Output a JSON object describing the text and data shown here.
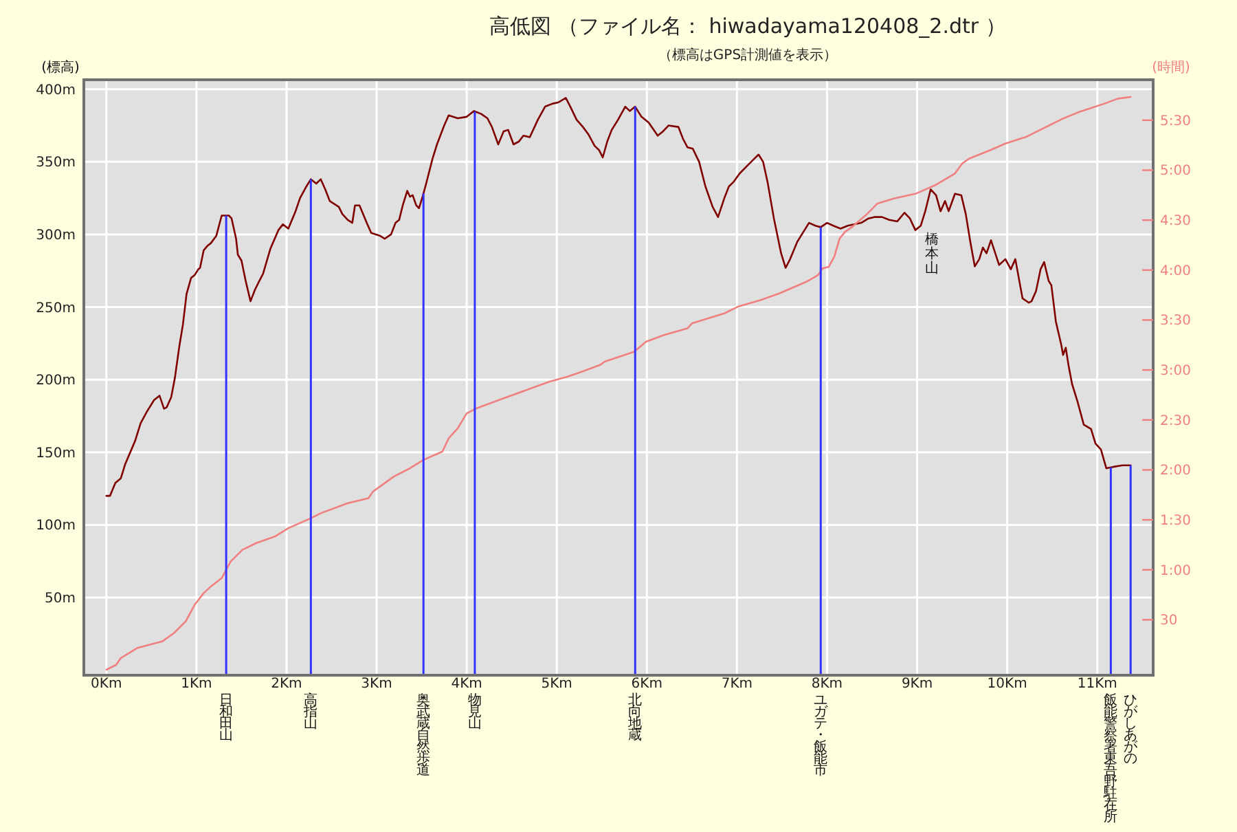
{
  "chart_data": {
    "type": "line",
    "title": "高低図 （ファイル名： hiwadayama120408_2.dtr ）",
    "subtitle": "（標高はGPS計測値を表示）",
    "ylabel": "(標高)",
    "y2label": "(時間)",
    "xlim": [
      -0.25,
      11.62
    ],
    "xticks": [
      {
        "value": 0,
        "label": "0Km"
      },
      {
        "value": 1,
        "label": "1Km"
      },
      {
        "value": 2,
        "label": "2Km"
      },
      {
        "value": 3,
        "label": "3Km"
      },
      {
        "value": 4,
        "label": "4Km"
      },
      {
        "value": 5,
        "label": "5Km"
      },
      {
        "value": 6,
        "label": "6Km"
      },
      {
        "value": 7,
        "label": "7Km"
      },
      {
        "value": 8,
        "label": "8Km"
      },
      {
        "value": 9,
        "label": "9Km"
      },
      {
        "value": 10,
        "label": "10Km"
      },
      {
        "value": 11,
        "label": "11Km"
      }
    ],
    "ylim": [
      -3.5,
      406.5
    ],
    "yticks": [
      {
        "value": 50,
        "label": "50m"
      },
      {
        "value": 100,
        "label": "100m"
      },
      {
        "value": 150,
        "label": "150m"
      },
      {
        "value": 200,
        "label": "200m"
      },
      {
        "value": 250,
        "label": "250m"
      },
      {
        "value": 300,
        "label": "300m"
      },
      {
        "value": 350,
        "label": "350m"
      },
      {
        "value": 400,
        "label": "400m"
      }
    ],
    "y2lim": [
      -3.3,
      354.3
    ],
    "y2ticks": [
      30,
      {
        "value": 60,
        "label": "1:00"
      },
      {
        "value": 90,
        "label": "1:30"
      },
      {
        "value": 120,
        "label": "2:00"
      },
      {
        "value": 150,
        "label": "2:30"
      },
      {
        "value": 180,
        "label": "3:00"
      },
      {
        "value": 210,
        "label": "3:30"
      },
      {
        "value": 240,
        "label": "4:00"
      },
      {
        "value": 270,
        "label": "4:30"
      },
      {
        "value": 300,
        "label": "5:00"
      },
      {
        "value": 330,
        "label": "5:30"
      }
    ],
    "grid": true,
    "series": [
      {
        "color": "#800000",
        "x": [
          0.0,
          0.04,
          0.1,
          0.16,
          0.21,
          0.32,
          0.38,
          0.45,
          0.53,
          0.59,
          0.64,
          0.67,
          0.72,
          0.76,
          0.81,
          0.85,
          0.89,
          0.94,
          0.98,
          1.02,
          1.04,
          1.08,
          1.12,
          1.16,
          1.22,
          1.28,
          1.36,
          1.39,
          1.44,
          1.46,
          1.5,
          1.55,
          1.6,
          1.65,
          1.69,
          1.74,
          1.82,
          1.91,
          1.96,
          2.02,
          2.1,
          2.15,
          2.22,
          2.27,
          2.33,
          2.38,
          2.43,
          2.48,
          2.58,
          2.62,
          2.68,
          2.73,
          2.76,
          2.81,
          2.89,
          2.94,
          3.04,
          3.09,
          3.16,
          3.21,
          3.25,
          3.29,
          3.34,
          3.37,
          3.4,
          3.44,
          3.47,
          3.51,
          3.55,
          3.62,
          3.67,
          3.75,
          3.8,
          3.9,
          4.0,
          4.08,
          4.16,
          4.23,
          4.28,
          4.35,
          4.41,
          4.46,
          4.52,
          4.58,
          4.63,
          4.7,
          4.79,
          4.87,
          4.95,
          5.02,
          5.1,
          5.15,
          5.22,
          5.29,
          5.35,
          5.42,
          5.47,
          5.51,
          5.56,
          5.61,
          5.68,
          5.76,
          5.81,
          5.87,
          5.94,
          6.02,
          6.12,
          6.18,
          6.24,
          6.35,
          6.4,
          6.45,
          6.51,
          6.58,
          6.65,
          6.73,
          6.79,
          6.86,
          6.91,
          6.96,
          7.03,
          7.11,
          7.19,
          7.24,
          7.29,
          7.34,
          7.41,
          7.49,
          7.54,
          7.59,
          7.67,
          7.75,
          7.8,
          7.87,
          7.93,
          8.0,
          8.07,
          8.15,
          8.23,
          8.38,
          8.46,
          8.53,
          8.61,
          8.69,
          8.78,
          8.86,
          8.92,
          8.98,
          9.04,
          9.09,
          9.15,
          9.21,
          9.26,
          9.31,
          9.35,
          9.42,
          9.49,
          9.54,
          9.59,
          9.64,
          9.69,
          9.73,
          9.77,
          9.82,
          9.91,
          9.98,
          10.04,
          10.09,
          10.17,
          10.24,
          10.27,
          10.32,
          10.37,
          10.41,
          10.46,
          10.49,
          10.54,
          10.6,
          10.62,
          10.65,
          10.68,
          10.72,
          10.78,
          10.85,
          10.93,
          10.98,
          11.04,
          11.1,
          11.18,
          11.28,
          11.37
        ],
        "values": [
          120,
          120,
          129,
          132,
          142,
          158,
          170,
          178,
          186,
          189,
          180,
          181,
          188,
          201,
          223,
          238,
          259,
          270,
          272,
          276,
          277,
          289,
          292,
          294,
          299,
          313,
          313,
          311,
          297,
          286,
          282,
          267,
          254,
          262,
          267,
          273,
          290,
          303,
          307,
          304,
          316,
          325,
          333,
          338,
          335,
          338,
          331,
          323,
          319,
          314,
          310,
          308,
          320,
          320,
          308,
          301,
          299,
          297,
          300,
          308,
          310,
          320,
          330,
          326,
          327,
          320,
          318,
          326,
          335,
          352,
          362,
          375,
          382,
          380,
          381,
          385,
          383,
          380,
          374,
          362,
          371,
          372,
          362,
          364,
          368,
          367,
          379,
          388,
          390,
          391,
          394,
          388,
          379,
          374,
          369,
          361,
          358,
          353,
          364,
          372,
          379,
          388,
          385,
          388,
          381,
          377,
          368,
          371,
          375,
          374,
          366,
          360,
          359,
          350,
          333,
          319,
          312,
          325,
          333,
          336,
          342,
          347,
          352,
          355,
          350,
          336,
          311,
          287,
          277,
          283,
          295,
          303,
          308,
          306,
          305,
          308,
          306,
          304,
          306,
          308,
          311,
          312,
          312,
          310,
          309,
          315,
          311,
          303,
          306,
          316,
          331,
          327,
          316,
          323,
          316,
          328,
          327,
          314,
          295,
          278,
          283,
          291,
          287,
          296,
          279,
          283,
          276,
          283,
          256,
          253,
          254,
          261,
          276,
          281,
          268,
          265,
          240,
          224,
          217,
          222,
          210,
          197,
          185,
          169,
          166,
          156,
          152,
          139,
          140,
          141,
          141
        ]
      },
      {
        "color": "#f08080",
        "axis": "y2",
        "x": [
          0.0,
          0.11,
          0.16,
          0.34,
          0.62,
          0.75,
          0.88,
          0.98,
          1.08,
          1.16,
          1.28,
          1.38,
          1.51,
          1.66,
          1.87,
          2.02,
          2.27,
          2.38,
          2.68,
          2.91,
          2.96,
          3.19,
          3.37,
          3.52,
          3.73,
          3.8,
          3.9,
          4.0,
          4.11,
          4.41,
          4.92,
          5.12,
          5.28,
          5.48,
          5.53,
          5.86,
          5.99,
          6.19,
          6.45,
          6.5,
          6.86,
          7.01,
          7.26,
          7.47,
          7.77,
          7.9,
          7.95,
          8.02,
          8.08,
          8.14,
          8.2,
          8.28,
          8.43,
          8.56,
          8.74,
          8.99,
          9.2,
          9.42,
          9.5,
          9.58,
          9.81,
          9.98,
          10.21,
          10.32,
          10.62,
          10.8,
          11.08,
          11.23,
          11.37
        ],
        "values": [
          0,
          3,
          7,
          13,
          17,
          22,
          29,
          39,
          46,
          50,
          55,
          65,
          72,
          76,
          80,
          85,
          91,
          94,
          100,
          103,
          107,
          116,
          121,
          126,
          131,
          139,
          145,
          154,
          157,
          163,
          173,
          176,
          179,
          183,
          185,
          191,
          197,
          201,
          205,
          208,
          214,
          218,
          222,
          226,
          233,
          237,
          241,
          242,
          248,
          259,
          263,
          266,
          273,
          280,
          283,
          286,
          291,
          298,
          304,
          307,
          312,
          316,
          320,
          323,
          331,
          335,
          340,
          343,
          344
        ]
      }
    ],
    "ref_lines": [
      {
        "axis": "x",
        "value": 1.33,
        "label": "日和田山",
        "color": "#3333ff"
      },
      {
        "axis": "x",
        "value": 2.27,
        "label": "高指山",
        "color": "#3333ff"
      },
      {
        "axis": "x",
        "value": 3.52,
        "label": "奥武蔵自然歩道",
        "color": "#3333ff"
      },
      {
        "axis": "x",
        "value": 4.09,
        "label": "物見山",
        "color": "#3333ff"
      },
      {
        "axis": "x",
        "value": 5.87,
        "label": "北向地蔵",
        "color": "#3333ff"
      },
      {
        "axis": "x",
        "value": 7.93,
        "label": "ユガテ・飯能市",
        "color": "#3333ff"
      },
      {
        "axis": "x",
        "value": 11.15,
        "label": "飯能警察署東吾野駐在所",
        "color": "#3333ff"
      },
      {
        "axis": "x",
        "value": 11.37,
        "label": "ひがしあがの",
        "color": "#3333ff"
      }
    ],
    "annotations": [
      "橋本山"
    ]
  }
}
